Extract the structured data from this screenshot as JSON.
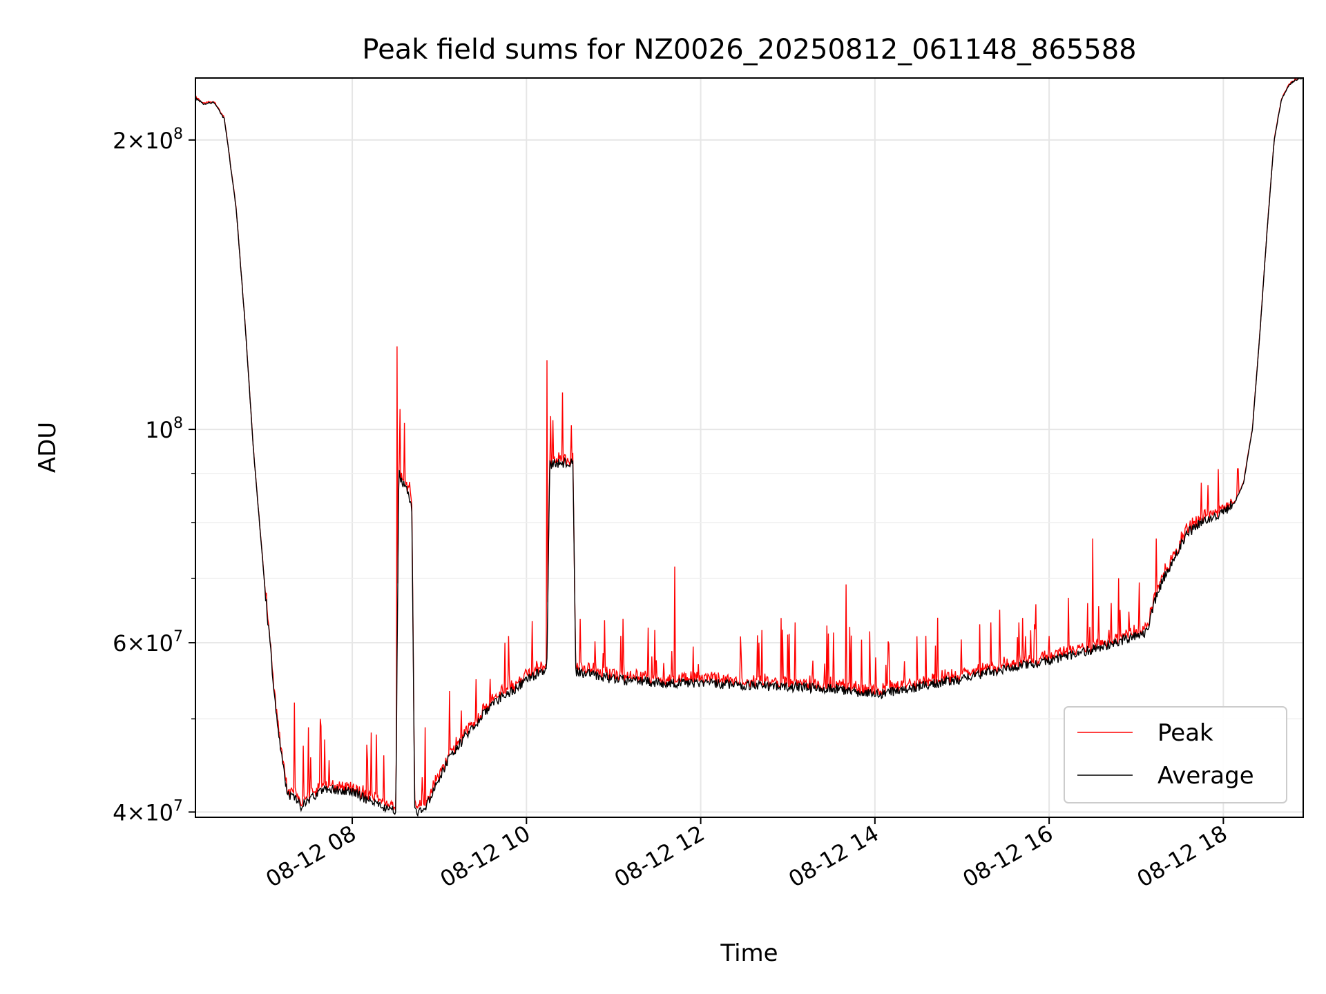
{
  "chart_data": {
    "type": "line",
    "title": "Peak field sums for NZ0026_20250812_061148_865588",
    "xlabel": "Time",
    "ylabel": "ADU",
    "yscale": "log",
    "xlim": [
      "2025-08-12 06:12",
      "2025-08-12 18:55"
    ],
    "ylim": [
      39500000,
      232000000
    ],
    "x_ticks": [
      "08-12 08",
      "08-12 10",
      "08-12 12",
      "08-12 14",
      "08-12 16",
      "08-12 18"
    ],
    "y_ticks": [
      {
        "value": 40000000,
        "base": "4",
        "exp": "7"
      },
      {
        "value": 60000000,
        "base": "6",
        "exp": "7"
      },
      {
        "value": 100000000,
        "base": "10",
        "exp": "8"
      },
      {
        "value": 200000000,
        "base": "2",
        "exp": "8"
      }
    ],
    "grid": true,
    "legend_position": "lower-right",
    "series": [
      {
        "name": "Peak",
        "color": "#ff0000"
      },
      {
        "name": "Average",
        "color": "#000000"
      }
    ],
    "baseline": {
      "x": [
        "2025-08-12 06:12",
        "2025-08-12 06:18",
        "2025-08-12 06:25",
        "2025-08-12 06:32",
        "2025-08-12 06:40",
        "2025-08-12 06:46",
        "2025-08-12 06:52",
        "2025-08-12 07:00",
        "2025-08-12 07:08",
        "2025-08-12 07:15",
        "2025-08-12 07:25",
        "2025-08-12 07:40",
        "2025-08-12 08:00",
        "2025-08-12 08:20",
        "2025-08-12 08:30",
        "2025-08-12 08:32",
        "2025-08-12 08:41",
        "2025-08-12 08:43",
        "2025-08-12 08:50",
        "2025-08-12 09:05",
        "2025-08-12 09:20",
        "2025-08-12 09:35",
        "2025-08-12 09:50",
        "2025-08-12 10:05",
        "2025-08-12 10:14",
        "2025-08-12 10:16",
        "2025-08-12 10:32",
        "2025-08-12 10:34",
        "2025-08-12 11:00",
        "2025-08-12 11:30",
        "2025-08-12 12:00",
        "2025-08-12 12:30",
        "2025-08-12 13:00",
        "2025-08-12 13:30",
        "2025-08-12 14:00",
        "2025-08-12 14:30",
        "2025-08-12 15:00",
        "2025-08-12 15:30",
        "2025-08-12 16:00",
        "2025-08-12 16:30",
        "2025-08-12 17:00",
        "2025-08-12 17:07",
        "2025-08-12 17:15",
        "2025-08-12 17:25",
        "2025-08-12 17:35",
        "2025-08-12 17:45",
        "2025-08-12 18:00",
        "2025-08-12 18:08",
        "2025-08-12 18:14",
        "2025-08-12 18:20",
        "2025-08-12 18:25",
        "2025-08-12 18:30",
        "2025-08-12 18:35",
        "2025-08-12 18:40",
        "2025-08-12 18:45",
        "2025-08-12 18:50",
        "2025-08-12 18:55"
      ],
      "y": [
        221000000,
        218000000,
        219000000,
        210000000,
        170000000,
        130000000,
        95000000,
        68000000,
        50000000,
        42000000,
        40500000,
        42300000,
        42000000,
        40500000,
        40200000,
        90000000,
        84000000,
        40000000,
        40200000,
        45000000,
        48500000,
        51500000,
        53500000,
        55500000,
        56200000,
        92000000,
        92500000,
        56000000,
        55000000,
        54500000,
        54500000,
        54200000,
        54000000,
        53800000,
        53000000,
        54000000,
        55000000,
        56500000,
        57500000,
        59000000,
        61000000,
        61500000,
        68000000,
        73000000,
        78000000,
        80000000,
        82000000,
        84000000,
        88000000,
        100000000,
        125000000,
        160000000,
        200000000,
        220000000,
        228000000,
        231000000,
        232000000
      ]
    },
    "spikes": [
      {
        "x": "2025-08-12 07:20",
        "peak": 52000000
      },
      {
        "x": "2025-08-12 07:30",
        "peak": 49000000
      },
      {
        "x": "2025-08-12 07:38",
        "peak": 50000000
      },
      {
        "x": "2025-08-12 08:10",
        "peak": 47000000
      },
      {
        "x": "2025-08-12 08:31",
        "peak": 122000000
      },
      {
        "x": "2025-08-12 08:33",
        "peak": 105000000
      },
      {
        "x": "2025-08-12 08:40",
        "peak": 86000000
      },
      {
        "x": "2025-08-12 08:50",
        "peak": 49000000
      },
      {
        "x": "2025-08-12 09:15",
        "peak": 51000000
      },
      {
        "x": "2025-08-12 09:35",
        "peak": 55000000
      },
      {
        "x": "2025-08-12 09:45",
        "peak": 60000000
      },
      {
        "x": "2025-08-12 10:14",
        "peak": 118000000
      },
      {
        "x": "2025-08-12 10:31",
        "peak": 101000000
      },
      {
        "x": "2025-08-12 11:05",
        "peak": 61000000
      },
      {
        "x": "2025-08-12 11:42",
        "peak": 72000000
      },
      {
        "x": "2025-08-12 12:40",
        "peak": 60000000
      },
      {
        "x": "2025-08-12 13:05",
        "peak": 63000000
      },
      {
        "x": "2025-08-12 13:40",
        "peak": 69000000
      },
      {
        "x": "2025-08-12 14:35",
        "peak": 61000000
      },
      {
        "x": "2025-08-12 15:20",
        "peak": 63000000
      },
      {
        "x": "2025-08-12 16:30",
        "peak": 77000000
      },
      {
        "x": "2025-08-12 17:45",
        "peak": 88000000
      },
      {
        "x": "2025-08-12 18:10",
        "peak": 91000000
      }
    ]
  }
}
